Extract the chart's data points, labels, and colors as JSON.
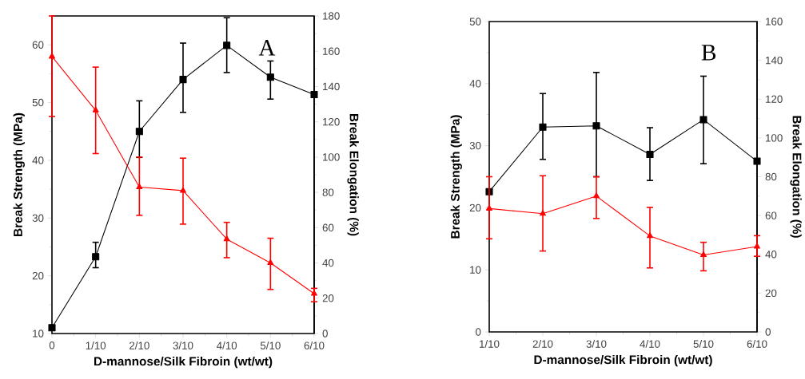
{
  "chart_data": [
    {
      "type": "line",
      "categories": [
        "0",
        "1/10",
        "2/10",
        "3/10",
        "4/10",
        "5/10",
        "6/10"
      ],
      "xlabel": "D-mannose/Silk Fibroin (wt/wt)",
      "ylabel": "Break Strength (MPa)",
      "y2label": "Break Elongation (%)",
      "ylim": [
        10,
        65
      ],
      "yticks": [
        10,
        20,
        30,
        40,
        50,
        60
      ],
      "y2lim": [
        0,
        180
      ],
      "y2ticks": [
        0,
        20,
        40,
        60,
        80,
        100,
        120,
        140,
        160,
        180
      ],
      "annotations": [
        "A"
      ],
      "series": [
        {
          "color": "#000000",
          "marker": "square",
          "values": [
            11,
            23.3,
            45.0,
            54.0,
            59.9,
            54.4,
            51.4
          ],
          "errors": [
            null,
            [
              21.4,
              25.8
            ],
            [
              40.5,
              50.3
            ],
            [
              48.3,
              60.3
            ],
            [
              55.2,
              64.7
            ],
            [
              50.6,
              57.2
            ],
            null
          ]
        },
        {
          "color": "#ff0000",
          "marker": "triangle",
          "axis": "y2",
          "values": [
            157,
            126.5,
            83,
            81,
            53.5,
            40,
            22.6
          ],
          "errors": [
            [
              123,
              180
            ],
            [
              102,
              151
            ],
            [
              67,
              100
            ],
            [
              62,
              99.4
            ],
            [
              43,
              63
            ],
            [
              25,
              54
            ],
            [
              18,
              25.6
            ]
          ]
        }
      ]
    },
    {
      "type": "line",
      "categories": [
        "1/10",
        "2/10",
        "3/10",
        "4/10",
        "5/10",
        "6/10"
      ],
      "xlabel": "D-mannose/Silk Fibroin (wt/wt)",
      "ylabel": "Break Strength (MPa)",
      "y2label": "Break Elongation (%)",
      "ylim": [
        0,
        50
      ],
      "yticks": [
        0,
        10,
        20,
        30,
        40,
        50
      ],
      "y2lim": [
        0,
        160
      ],
      "y2ticks": [
        0,
        20,
        40,
        60,
        80,
        100,
        120,
        140,
        160
      ],
      "annotations": [
        "B"
      ],
      "series": [
        {
          "color": "#000000",
          "marker": "square",
          "values": [
            22.6,
            33.0,
            33.2,
            28.6,
            34.2,
            27.5
          ],
          "errors": [
            null,
            [
              27.8,
              38.4
            ],
            [
              25.0,
              41.8
            ],
            [
              24.4,
              32.9
            ],
            [
              27.1,
              41.2
            ],
            null
          ]
        },
        {
          "color": "#ff0000",
          "marker": "triangle",
          "axis": "y2",
          "values": [
            63.6,
            61,
            70,
            49.5,
            39.7,
            44
          ],
          "errors": [
            [
              48,
              80
            ],
            [
              41.7,
              80.5
            ],
            [
              58.5,
              80
            ],
            [
              33,
              64.2
            ],
            [
              31.5,
              46.2
            ],
            [
              39,
              49.6
            ]
          ]
        }
      ]
    }
  ]
}
